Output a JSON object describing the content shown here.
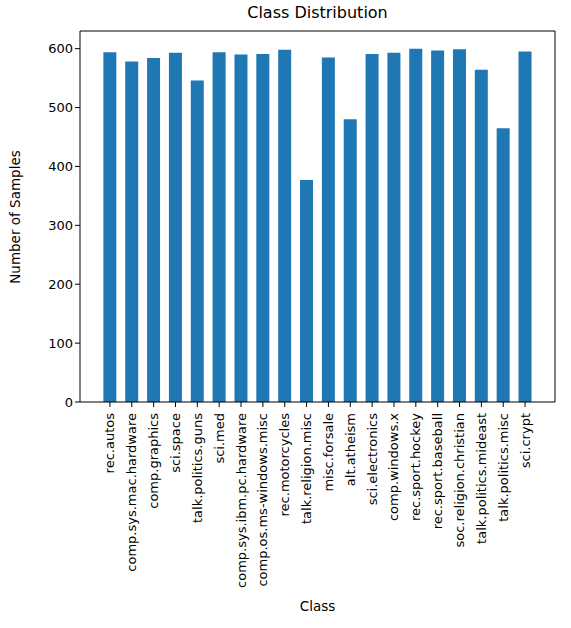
{
  "chart_data": {
    "type": "bar",
    "title": "Class Distribution",
    "xlabel": "Class",
    "ylabel": "Number of Samples",
    "categories": [
      "rec.autos",
      "comp.sys.mac.hardware",
      "comp.graphics",
      "sci.space",
      "talk.politics.guns",
      "sci.med",
      "comp.sys.ibm.pc.hardware",
      "comp.os.ms-windows.misc",
      "rec.motorcycles",
      "talk.religion.misc",
      "misc.forsale",
      "alt.atheism",
      "sci.electronics",
      "comp.windows.x",
      "rec.sport.hockey",
      "rec.sport.baseball",
      "soc.religion.christian",
      "talk.politics.mideast",
      "talk.politics.misc",
      "sci.crypt"
    ],
    "values": [
      594,
      578,
      584,
      593,
      546,
      594,
      590,
      591,
      598,
      377,
      585,
      480,
      591,
      593,
      600,
      597,
      599,
      564,
      465,
      595
    ],
    "color": "#1f77b4",
    "ylim": [
      0,
      630
    ],
    "yticks": [
      0,
      100,
      200,
      300,
      400,
      500,
      600
    ],
    "grid": false
  }
}
